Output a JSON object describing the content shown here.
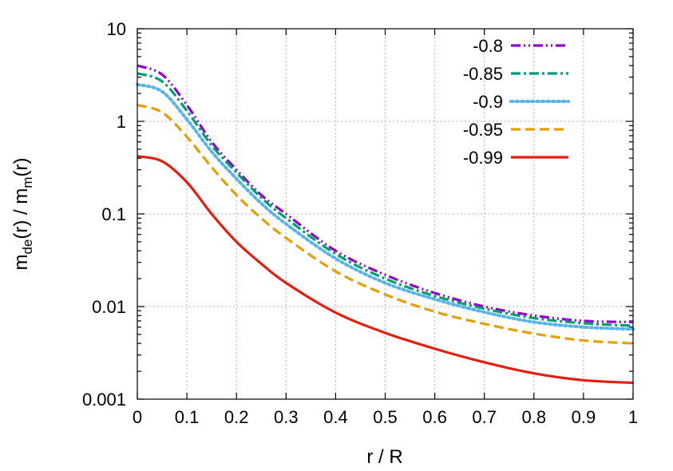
{
  "chart_data": {
    "type": "line",
    "title": "",
    "xlabel": "r / R",
    "ylabel_main": "m",
    "ylabel_sub1": "de",
    "ylabel_mid": "(r) / m",
    "ylabel_sub2": "m",
    "ylabel_end": "(r)",
    "xlim": [
      0,
      1
    ],
    "ylim": [
      0.001,
      10
    ],
    "yscale": "log",
    "grid": true,
    "legend_position": "top-right",
    "x_ticks": [
      "0",
      "0.1",
      "0.2",
      "0.3",
      "0.4",
      "0.5",
      "0.6",
      "0.7",
      "0.8",
      "0.9",
      "1"
    ],
    "y_ticks": [
      "0.001",
      "0.01",
      "0.1",
      "1",
      "10"
    ],
    "x": [
      0,
      0.05,
      0.1,
      0.15,
      0.2,
      0.25,
      0.3,
      0.4,
      0.5,
      0.6,
      0.7,
      0.8,
      0.9,
      1.0
    ],
    "series": [
      {
        "name": "-0.8",
        "color": "#9400d3",
        "dash": "dash-dot-dot",
        "values": [
          4.0,
          3.2,
          1.5,
          0.6,
          0.3,
          0.16,
          0.1,
          0.04,
          0.022,
          0.014,
          0.01,
          0.008,
          0.007,
          0.0068
        ]
      },
      {
        "name": "-0.85",
        "color": "#009e73",
        "dash": "dash-dot",
        "values": [
          3.3,
          2.7,
          1.3,
          0.55,
          0.28,
          0.15,
          0.09,
          0.037,
          0.02,
          0.013,
          0.0095,
          0.0075,
          0.0066,
          0.0062
        ]
      },
      {
        "name": "-0.9",
        "color": "#56b4e9",
        "dash": "dotted",
        "values": [
          2.5,
          2.1,
          1.05,
          0.47,
          0.24,
          0.13,
          0.078,
          0.033,
          0.018,
          0.012,
          0.0087,
          0.0068,
          0.006,
          0.0057
        ]
      },
      {
        "name": "-0.95",
        "color": "#e69f00",
        "dash": "dashed",
        "values": [
          1.5,
          1.25,
          0.68,
          0.32,
          0.16,
          0.09,
          0.055,
          0.024,
          0.0135,
          0.0088,
          0.0065,
          0.0051,
          0.0043,
          0.004
        ]
      },
      {
        "name": "-0.99",
        "color": "#e51e10",
        "dash": "solid",
        "values": [
          0.42,
          0.37,
          0.22,
          0.1,
          0.05,
          0.029,
          0.018,
          0.0086,
          0.0052,
          0.0035,
          0.0025,
          0.0019,
          0.0016,
          0.0015
        ]
      }
    ]
  }
}
